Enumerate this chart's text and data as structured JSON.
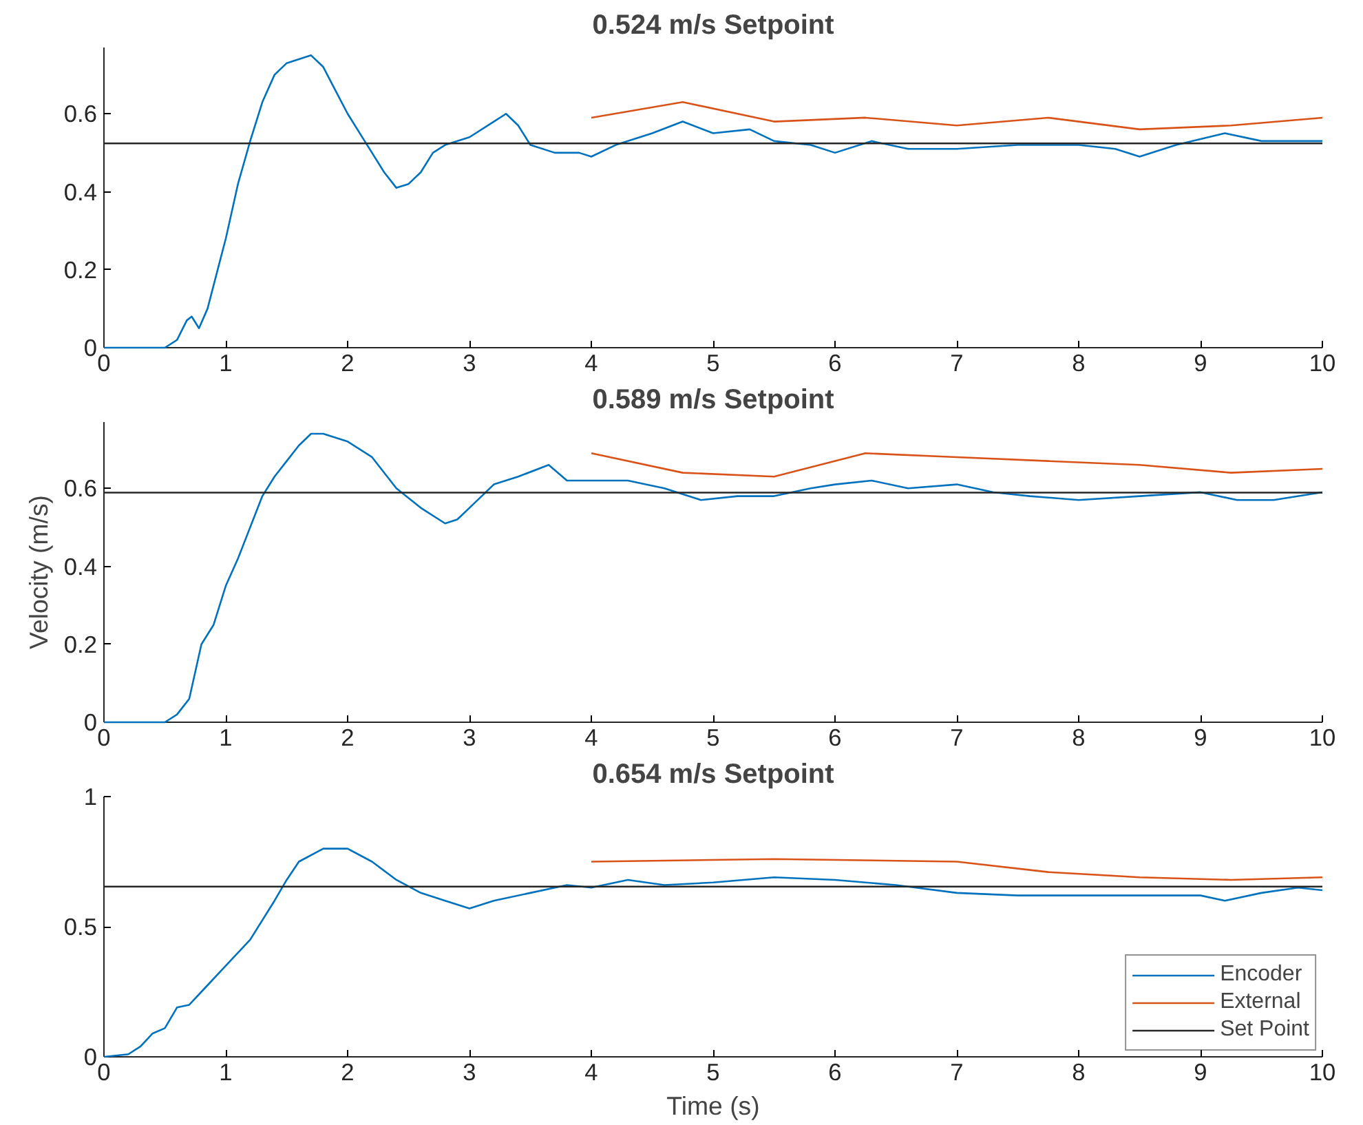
{
  "chart_data": [
    {
      "type": "line",
      "title": "0.524 m/s Setpoint",
      "xlim": [
        0,
        10
      ],
      "xticks": [
        0,
        1,
        2,
        3,
        4,
        5,
        6,
        7,
        8,
        9,
        10
      ],
      "ylim": [
        0,
        0.77
      ],
      "yticks": [
        0,
        0.2,
        0.4,
        0.6
      ],
      "series": [
        {
          "color": "#0072bd",
          "x": [
            0,
            0.5,
            0.6,
            0.68,
            0.72,
            0.78,
            0.85,
            0.95,
            1.0,
            1.1,
            1.2,
            1.3,
            1.4,
            1.5,
            1.6,
            1.7,
            1.8,
            1.9,
            2.0,
            2.1,
            2.2,
            2.3,
            2.4,
            2.5,
            2.6,
            2.7,
            2.8,
            3.0,
            3.2,
            3.3,
            3.4,
            3.5,
            3.7,
            3.9,
            4.0,
            4.2,
            4.5,
            4.75,
            5.0,
            5.3,
            5.5,
            5.8,
            6.0,
            6.3,
            6.6,
            7.0,
            7.5,
            8.0,
            8.3,
            8.5,
            8.8,
            9.2,
            9.5,
            9.8,
            10
          ],
          "values": [
            0,
            0,
            0.02,
            0.07,
            0.08,
            0.05,
            0.1,
            0.22,
            0.28,
            0.42,
            0.53,
            0.63,
            0.7,
            0.73,
            0.74,
            0.75,
            0.72,
            0.66,
            0.6,
            0.55,
            0.5,
            0.45,
            0.41,
            0.42,
            0.45,
            0.5,
            0.52,
            0.54,
            0.58,
            0.6,
            0.57,
            0.52,
            0.5,
            0.5,
            0.49,
            0.52,
            0.55,
            0.58,
            0.55,
            0.56,
            0.53,
            0.52,
            0.5,
            0.53,
            0.51,
            0.51,
            0.52,
            0.52,
            0.51,
            0.49,
            0.52,
            0.55,
            0.53,
            0.53,
            0.53
          ]
        },
        {
          "color": "#d95319",
          "x": [
            4,
            4.75,
            5.5,
            6.25,
            7,
            7.75,
            8.5,
            9.25,
            10
          ],
          "values": [
            0.59,
            0.63,
            0.58,
            0.59,
            0.57,
            0.59,
            0.56,
            0.57,
            0.59
          ]
        },
        {
          "color": "#262626",
          "x": [
            0,
            10
          ],
          "values": [
            0.524,
            0.524
          ]
        }
      ]
    },
    {
      "type": "line",
      "title": "0.589 m/s Setpoint",
      "ylabel": "Velocity (m/s)",
      "xlim": [
        0,
        10
      ],
      "xticks": [
        0,
        1,
        2,
        3,
        4,
        5,
        6,
        7,
        8,
        9,
        10
      ],
      "ylim": [
        0,
        0.77
      ],
      "yticks": [
        0,
        0.2,
        0.4,
        0.6
      ],
      "series": [
        {
          "color": "#0072bd",
          "x": [
            0,
            0.5,
            0.6,
            0.7,
            0.8,
            0.9,
            1.0,
            1.1,
            1.2,
            1.3,
            1.4,
            1.5,
            1.6,
            1.7,
            1.8,
            2.0,
            2.2,
            2.4,
            2.6,
            2.8,
            2.9,
            3.0,
            3.2,
            3.4,
            3.65,
            3.8,
            4.0,
            4.3,
            4.6,
            4.9,
            5.2,
            5.5,
            5.8,
            6.0,
            6.3,
            6.6,
            7.0,
            7.3,
            7.6,
            8.0,
            8.5,
            9.0,
            9.3,
            9.6,
            10
          ],
          "values": [
            0,
            0,
            0.02,
            0.06,
            0.2,
            0.25,
            0.35,
            0.42,
            0.5,
            0.58,
            0.63,
            0.67,
            0.71,
            0.74,
            0.74,
            0.72,
            0.68,
            0.6,
            0.55,
            0.51,
            0.52,
            0.55,
            0.61,
            0.63,
            0.66,
            0.62,
            0.62,
            0.62,
            0.6,
            0.57,
            0.58,
            0.58,
            0.6,
            0.61,
            0.62,
            0.6,
            0.61,
            0.59,
            0.58,
            0.57,
            0.58,
            0.59,
            0.57,
            0.57,
            0.59
          ]
        },
        {
          "color": "#d95319",
          "x": [
            4,
            4.75,
            5.5,
            6.25,
            7,
            7.75,
            8.5,
            9.25,
            10
          ],
          "values": [
            0.69,
            0.64,
            0.63,
            0.69,
            0.68,
            0.67,
            0.66,
            0.64,
            0.65
          ]
        },
        {
          "color": "#262626",
          "x": [
            0,
            10
          ],
          "values": [
            0.589,
            0.589
          ]
        }
      ]
    },
    {
      "type": "line",
      "title": "0.654 m/s Setpoint",
      "xlabel": "Time (s)",
      "xlim": [
        0,
        10
      ],
      "xticks": [
        0,
        1,
        2,
        3,
        4,
        5,
        6,
        7,
        8,
        9,
        10
      ],
      "ylim": [
        0,
        1
      ],
      "yticks": [
        0,
        0.5,
        1
      ],
      "legend": "bottom right",
      "series": [
        {
          "name": "Encoder",
          "color": "#0072bd",
          "x": [
            0,
            0.2,
            0.3,
            0.4,
            0.5,
            0.6,
            0.7,
            0.8,
            1.0,
            1.2,
            1.4,
            1.5,
            1.6,
            1.8,
            2.0,
            2.2,
            2.4,
            2.6,
            2.8,
            3.0,
            3.2,
            3.5,
            3.8,
            4.0,
            4.3,
            4.6,
            5.0,
            5.5,
            6.0,
            6.5,
            7.0,
            7.5,
            8.0,
            8.5,
            9.0,
            9.2,
            9.5,
            9.8,
            10
          ],
          "values": [
            0,
            0.01,
            0.04,
            0.09,
            0.11,
            0.19,
            0.2,
            0.25,
            0.35,
            0.45,
            0.6,
            0.68,
            0.75,
            0.8,
            0.8,
            0.75,
            0.68,
            0.63,
            0.6,
            0.57,
            0.6,
            0.63,
            0.66,
            0.65,
            0.68,
            0.66,
            0.67,
            0.69,
            0.68,
            0.66,
            0.63,
            0.62,
            0.62,
            0.62,
            0.62,
            0.6,
            0.63,
            0.65,
            0.64
          ]
        },
        {
          "name": "External",
          "color": "#d95319",
          "x": [
            4,
            5.5,
            7,
            7.75,
            8.5,
            9.25,
            10
          ],
          "values": [
            0.75,
            0.76,
            0.75,
            0.71,
            0.69,
            0.68,
            0.69
          ]
        },
        {
          "name": "Set Point",
          "color": "#262626",
          "x": [
            0,
            10
          ],
          "values": [
            0.654,
            0.654
          ]
        }
      ]
    }
  ]
}
